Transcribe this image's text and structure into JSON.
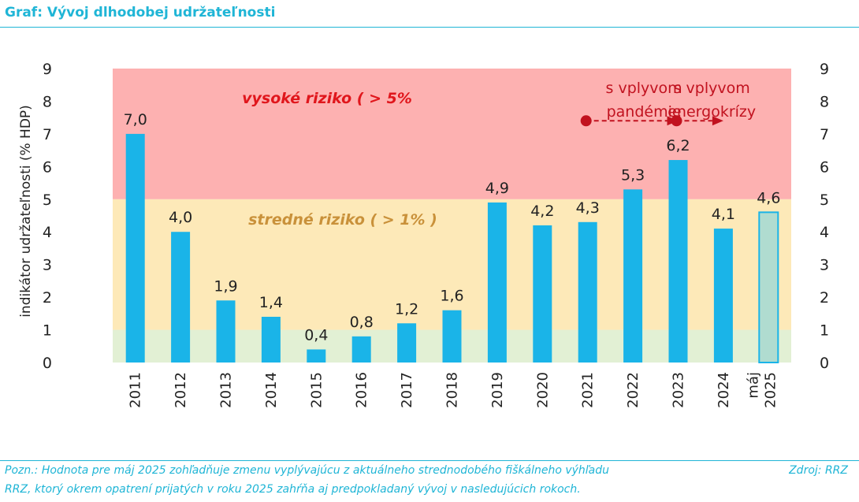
{
  "header": {
    "title": "Graf: Vývoj dlhodobej udržateľnosti"
  },
  "chart_data": {
    "type": "bar",
    "categories": [
      "2011",
      "2012",
      "2013",
      "2014",
      "2015",
      "2016",
      "2017",
      "2018",
      "2019",
      "2020",
      "2021",
      "2022",
      "2023",
      "2024",
      "máj 2025"
    ],
    "values": [
      7.0,
      4.0,
      1.9,
      1.4,
      0.4,
      0.8,
      1.2,
      1.6,
      4.9,
      4.2,
      4.3,
      5.3,
      6.2,
      4.1,
      4.6
    ],
    "data_labels": [
      "7,0",
      "4,0",
      "1,9",
      "1,4",
      "0,4",
      "0,8",
      "1,2",
      "1,6",
      "4,9",
      "4,2",
      "4,3",
      "5,3",
      "6,2",
      "4,1",
      "4,6"
    ],
    "ylabel": "indikátor udržateľnosti (% HDP)",
    "ylim": [
      0,
      9
    ],
    "yticks": [
      "0",
      "1",
      "2",
      "3",
      "4",
      "5",
      "6",
      "7",
      "8",
      "9"
    ],
    "highlight_last_bar": true,
    "risk_zones": [
      {
        "from": 0,
        "to": 1,
        "color": "#e2f0d4"
      },
      {
        "from": 1,
        "to": 5,
        "label": "stredné riziko ( > 1% )",
        "color": "#fde9b8",
        "text_color": "#c9913a"
      },
      {
        "from": 5,
        "to": 9,
        "label": "vysoké riziko ( > 5%",
        "color": "#fdb1b1",
        "text_color": "#e0161c"
      }
    ],
    "annotations": [
      {
        "lines": [
          "s vplyvom",
          "pandémie"
        ],
        "from_category": "2021",
        "to_category": "2023",
        "color": "#c1121f"
      },
      {
        "lines": [
          "s vplyvom",
          "energokrízy"
        ],
        "from_category": "2023",
        "to_category": "2024",
        "color": "#c1121f"
      }
    ],
    "colors": {
      "bar": "#1ab4e8",
      "last_bar_fill": "#b0dcd0",
      "last_bar_stroke": "#1ab4e8"
    }
  },
  "footer": {
    "note_line_1": "Pozn.: Hodnota pre máj 2025 zohľadňuje zmenu vyplývajúcu z aktuálneho strednodobého fiškálneho výhľadu",
    "note_line_2": "RRZ, ktorý okrem opatrení prijatých v roku 2025 zahŕňa aj predpokladaný vývoj v nasledujúcich rokoch.",
    "source": "Zdroj: RRZ"
  }
}
